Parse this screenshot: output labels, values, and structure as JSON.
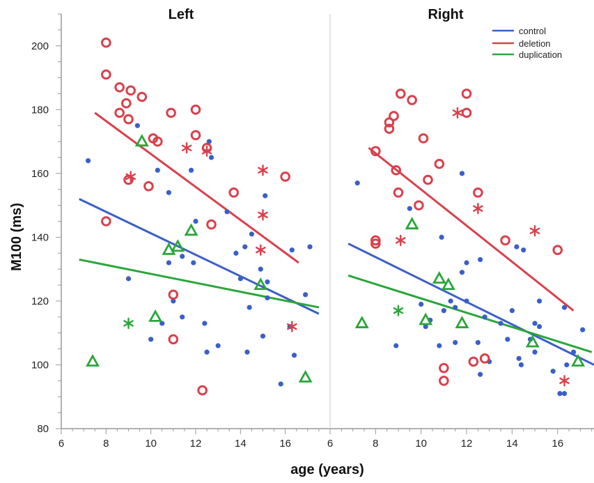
{
  "chart_data": {
    "type": "scatter",
    "panels": [
      {
        "title": "Left",
        "xlim": [
          6,
          18
        ],
        "ylim": [
          80,
          210
        ],
        "series": [
          {
            "name": "control",
            "color": "#3a5fc8",
            "marker": "dot",
            "points": [
              [
                7.2,
                164
              ],
              [
                9.4,
                175
              ],
              [
                10.3,
                161
              ],
              [
                10.8,
                154
              ],
              [
                9,
                127
              ],
              [
                10,
                108
              ],
              [
                10.5,
                113
              ],
              [
                10.8,
                132
              ],
              [
                11,
                120
              ],
              [
                11.4,
                134
              ],
              [
                11.4,
                115
              ],
              [
                11.8,
                161
              ],
              [
                11.9,
                132
              ],
              [
                12,
                145
              ],
              [
                12.4,
                113
              ],
              [
                12.5,
                104
              ],
              [
                12.6,
                170
              ],
              [
                12.7,
                165
              ],
              [
                13,
                106
              ],
              [
                13.4,
                148
              ],
              [
                13.8,
                135
              ],
              [
                14,
                127
              ],
              [
                14.2,
                137
              ],
              [
                14.3,
                104
              ],
              [
                14.4,
                118
              ],
              [
                14.5,
                141
              ],
              [
                14.9,
                130
              ],
              [
                15,
                109
              ],
              [
                15.1,
                153
              ],
              [
                15.2,
                126
              ],
              [
                15.2,
                121
              ],
              [
                15.8,
                94
              ],
              [
                16.2,
                112
              ],
              [
                16.3,
                136
              ],
              [
                16.4,
                103
              ],
              [
                16.9,
                122
              ],
              [
                17.1,
                137
              ]
            ],
            "fit": [
              [
                6.8,
                152
              ],
              [
                17.5,
                116
              ]
            ]
          },
          {
            "name": "deletion",
            "color": "#d9404c",
            "marker": "circle",
            "points": [
              [
                8,
                201
              ],
              [
                8,
                191
              ],
              [
                8.6,
                187
              ],
              [
                9.1,
                186
              ],
              [
                9.6,
                184
              ],
              [
                8.6,
                179
              ],
              [
                8.9,
                182
              ],
              [
                9,
                177
              ],
              [
                10.1,
                171
              ],
              [
                10.3,
                170
              ],
              [
                10.9,
                179
              ],
              [
                12,
                180
              ],
              [
                12,
                172
              ],
              [
                12.5,
                168
              ],
              [
                12.7,
                144
              ],
              [
                13.7,
                154
              ],
              [
                9,
                158
              ],
              [
                9.9,
                156
              ],
              [
                8,
                145
              ],
              [
                11,
                122
              ],
              [
                11,
                108
              ],
              [
                16,
                159
              ],
              [
                12.3,
                92
              ]
            ],
            "fit": [
              [
                7.5,
                179
              ],
              [
                16.6,
                132
              ]
            ]
          },
          {
            "name": "deletion",
            "color": "#d9404c",
            "marker": "asterisk",
            "points": [
              [
                9.1,
                159
              ],
              [
                11.6,
                168
              ],
              [
                12.5,
                167
              ],
              [
                15,
                161
              ],
              [
                15,
                147
              ],
              [
                14.9,
                136
              ],
              [
                16.3,
                112
              ]
            ]
          },
          {
            "name": "duplication",
            "color": "#2aa63a",
            "marker": "triangle",
            "points": [
              [
                9.6,
                170
              ],
              [
                7.4,
                101
              ],
              [
                10.2,
                115
              ],
              [
                10.8,
                136
              ],
              [
                11.2,
                137
              ],
              [
                11.8,
                142
              ],
              [
                14.9,
                125
              ],
              [
                16.9,
                96
              ]
            ],
            "fit": [
              [
                6.8,
                133
              ],
              [
                17.5,
                118
              ]
            ]
          },
          {
            "name": "duplication",
            "color": "#2aa63a",
            "marker": "asterisk",
            "points": [
              [
                9,
                113
              ]
            ]
          }
        ]
      },
      {
        "title": "Right",
        "xlim": [
          6,
          17.6
        ],
        "ylim": [
          80,
          210
        ],
        "series": [
          {
            "name": "control",
            "color": "#3a5fc8",
            "marker": "dot",
            "points": [
              [
                7.2,
                157
              ],
              [
                9.5,
                149
              ],
              [
                8.9,
                106
              ],
              [
                10,
                119
              ],
              [
                10.2,
                112
              ],
              [
                10.4,
                114
              ],
              [
                10.8,
                106
              ],
              [
                10.9,
                140
              ],
              [
                11,
                117
              ],
              [
                11.3,
                120
              ],
              [
                11.5,
                107
              ],
              [
                11.5,
                118
              ],
              [
                11.8,
                160
              ],
              [
                11.8,
                129
              ],
              [
                12,
                132
              ],
              [
                12,
                120
              ],
              [
                12.5,
                107
              ],
              [
                12.6,
                97
              ],
              [
                12.6,
                133
              ],
              [
                12.8,
                115
              ],
              [
                13,
                101
              ],
              [
                13.5,
                113
              ],
              [
                13.8,
                108
              ],
              [
                14,
                117
              ],
              [
                14.2,
                137
              ],
              [
                14.3,
                102
              ],
              [
                14.4,
                100
              ],
              [
                14.5,
                136
              ],
              [
                14.8,
                108
              ],
              [
                15,
                104
              ],
              [
                15,
                113
              ],
              [
                15.2,
                112
              ],
              [
                15.2,
                120
              ],
              [
                15.8,
                98
              ],
              [
                16.1,
                91
              ],
              [
                16.3,
                91
              ],
              [
                16.4,
                100
              ],
              [
                16.3,
                118
              ],
              [
                17.1,
                111
              ],
              [
                16.7,
                104
              ]
            ],
            "fit": [
              [
                6.8,
                138
              ],
              [
                17.6,
                100
              ]
            ]
          },
          {
            "name": "deletion",
            "color": "#d9404c",
            "marker": "circle",
            "points": [
              [
                8,
                167
              ],
              [
                8.6,
                176
              ],
              [
                8.6,
                174
              ],
              [
                8.8,
                178
              ],
              [
                9.1,
                185
              ],
              [
                9.6,
                183
              ],
              [
                8.9,
                161
              ],
              [
                9,
                154
              ],
              [
                10.1,
                171
              ],
              [
                10.3,
                158
              ],
              [
                10.8,
                163
              ],
              [
                12,
                185
              ],
              [
                12,
                179
              ],
              [
                12.5,
                154
              ],
              [
                13.7,
                139
              ],
              [
                9.9,
                150
              ],
              [
                8,
                139
              ],
              [
                8,
                138
              ],
              [
                11,
                99
              ],
              [
                11,
                95
              ],
              [
                12.3,
                101
              ],
              [
                12.8,
                102
              ],
              [
                16,
                136
              ]
            ],
            "fit": [
              [
                7.7,
                168
              ],
              [
                16.7,
                117
              ]
            ]
          },
          {
            "name": "deletion",
            "color": "#d9404c",
            "marker": "asterisk",
            "points": [
              [
                9.1,
                139
              ],
              [
                11.6,
                179
              ],
              [
                12.5,
                149
              ],
              [
                15,
                142
              ],
              [
                16.3,
                95
              ]
            ]
          },
          {
            "name": "duplication",
            "color": "#2aa63a",
            "marker": "triangle",
            "points": [
              [
                7.4,
                113
              ],
              [
                9.6,
                144
              ],
              [
                10.2,
                114
              ],
              [
                10.8,
                127
              ],
              [
                11.2,
                125
              ],
              [
                11.8,
                113
              ],
              [
                14.9,
                107
              ],
              [
                16.9,
                101
              ]
            ],
            "fit": [
              [
                6.8,
                128
              ],
              [
                17.5,
                104
              ]
            ]
          },
          {
            "name": "duplication",
            "color": "#2aa63a",
            "marker": "asterisk",
            "points": [
              [
                9,
                117
              ]
            ]
          }
        ]
      }
    ],
    "ylabel": "M100 (ms)",
    "xlabel": "age (years)",
    "yticks": [
      80,
      100,
      120,
      140,
      160,
      180,
      200
    ],
    "xticks": [
      6,
      8,
      10,
      12,
      14,
      16
    ],
    "legend": {
      "placement": "top-right",
      "entries": [
        {
          "label": "control",
          "color": "#3a5fc8"
        },
        {
          "label": "deletion",
          "color": "#d9404c"
        },
        {
          "label": "duplication",
          "color": "#2aa63a"
        }
      ]
    }
  }
}
